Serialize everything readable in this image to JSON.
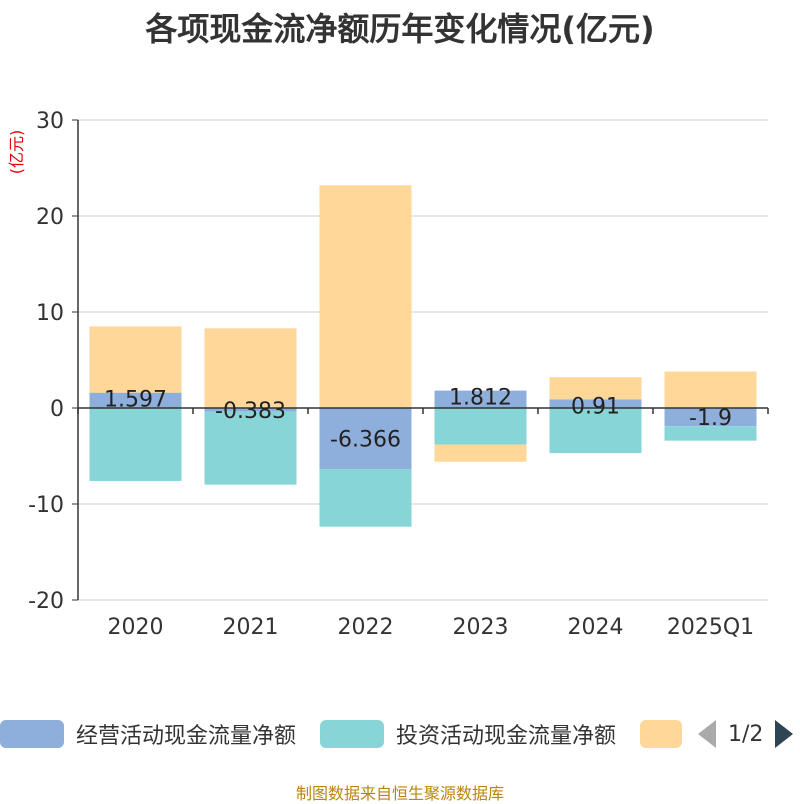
{
  "colors": {
    "operating": "#8eaedc",
    "investing": "#87d5d6",
    "financing": "#fed799",
    "axis": "#333333",
    "grid": "#cccccc",
    "title": "#333333",
    "unit": "#e0000a",
    "source": "#b8860b"
  },
  "chart_data": {
    "type": "bar",
    "stacked": true,
    "title": "各项现金流净额历年变化情况(亿元)",
    "ylabel": "(亿元)",
    "ylim": [
      -20,
      30
    ],
    "yticks": [
      30,
      20,
      10,
      0,
      -10,
      -20
    ],
    "categories": [
      "2020",
      "2021",
      "2022",
      "2023",
      "2024",
      "2025Q1"
    ],
    "series": [
      {
        "name": "经营活动现金流量净额",
        "values": [
          1.597,
          -0.383,
          -6.366,
          1.812,
          0.91,
          -1.9
        ],
        "labels": [
          "1.597",
          "-0.383",
          "-6.366",
          "1.812",
          "0.91",
          "-1.9"
        ]
      },
      {
        "name": "投资活动现金流量净额",
        "values": [
          -7.6,
          -7.6,
          -6.0,
          -3.8,
          -4.7,
          -1.5
        ]
      },
      {
        "name": "",
        "values": [
          6.9,
          8.3,
          23.2,
          -1.8,
          2.3,
          3.8
        ]
      }
    ]
  },
  "legend": {
    "items": [
      {
        "label": "经营活动现金流量净额"
      },
      {
        "label": "投资活动现金流量净额"
      },
      {
        "label": ""
      }
    ],
    "page": "1/2"
  },
  "source": "制图数据来自恒生聚源数据库"
}
